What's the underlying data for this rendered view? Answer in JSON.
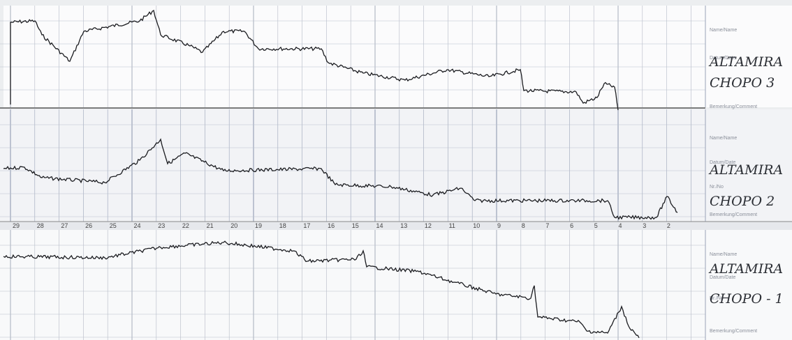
{
  "strips": [
    {
      "fields": [
        "Name/Name",
        "Datum/Date",
        "Bemerkung/Comment"
      ],
      "handwriting": [
        "ALTAMIRA",
        "CHOPO 3"
      ]
    },
    {
      "fields": [
        "Name/Name",
        "Datum/Date",
        "Nr./No",
        "Bemerkung/Comment"
      ],
      "handwriting": [
        "ALTAMIRA",
        "CHOPO 2"
      ]
    },
    {
      "fields": [
        "Name/Name",
        "Datum/Date",
        "Nr./No",
        "Bemerkung/Comment"
      ],
      "handwriting": [
        "ALTAMIRA",
        "CHOPO - 1"
      ]
    }
  ],
  "scale": [
    "29",
    "28",
    "27",
    "26",
    "25",
    "24",
    "23",
    "22",
    "21",
    "20",
    "19",
    "18",
    "17",
    "16",
    "15",
    "14",
    "13",
    "12",
    "11",
    "10",
    "9",
    "8",
    "7",
    "6",
    "5",
    "4",
    "3",
    "2"
  ]
}
